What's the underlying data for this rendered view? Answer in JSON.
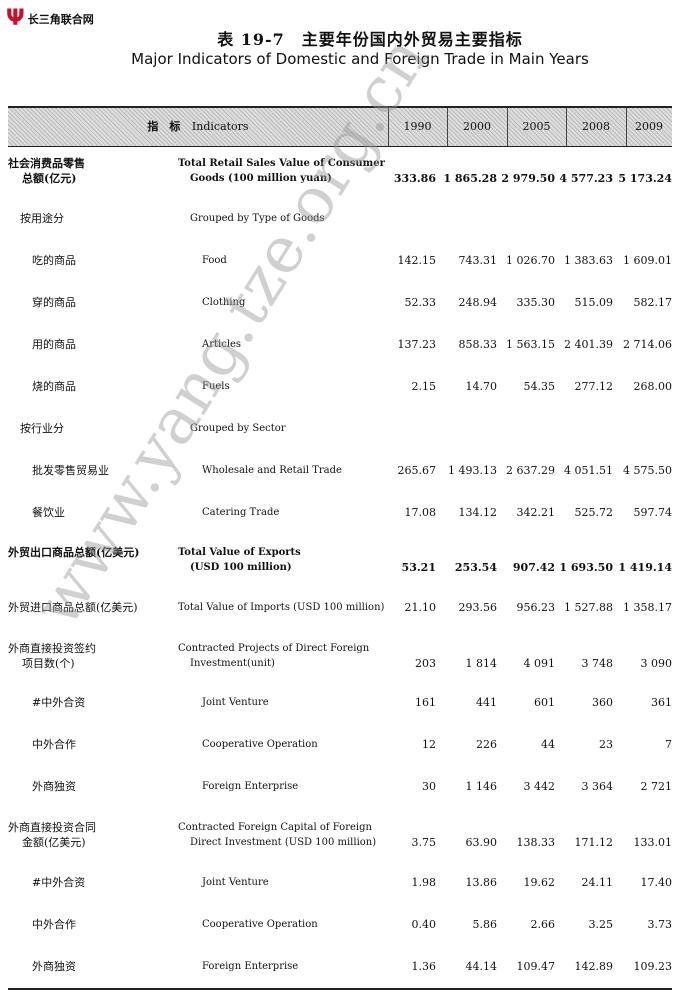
{
  "logo": {
    "mark": "Ψ",
    "text": "长三角联合网",
    "color": "#c8102e"
  },
  "title_cn": "表 19-7　主要年份国内外贸易主要指标",
  "title_en": "Major Indicators of Domestic and Foreign Trade in Main Years",
  "header": {
    "indicator_cn": "指　标",
    "indicator_en": "Indicators",
    "years": [
      "1990",
      "2000",
      "2005",
      "2008",
      "2009"
    ]
  },
  "rows": [
    {
      "cn": [
        "社会消费品零售",
        "总额(亿元)"
      ],
      "en": [
        "Total Retail Sales Value of Consumer",
        "Goods (100 million yuan)"
      ],
      "values": [
        "333.86",
        "1 865.28",
        "2 979.50",
        "4 577.23",
        "5 173.24"
      ],
      "bold": true,
      "indent": 0
    },
    {
      "cn": [
        "按用途分"
      ],
      "en": [
        "Grouped by Type of Goods"
      ],
      "values": [],
      "indent": 1
    },
    {
      "cn": [
        "吃的商品"
      ],
      "en": [
        "Food"
      ],
      "values": [
        "142.15",
        "743.31",
        "1 026.70",
        "1 383.63",
        "1 609.01"
      ],
      "indent": 2
    },
    {
      "cn": [
        "穿的商品"
      ],
      "en": [
        "Clothing"
      ],
      "values": [
        "52.33",
        "248.94",
        "335.30",
        "515.09",
        "582.17"
      ],
      "indent": 2
    },
    {
      "cn": [
        "用的商品"
      ],
      "en": [
        "Articles"
      ],
      "values": [
        "137.23",
        "858.33",
        "1 563.15",
        "2 401.39",
        "2 714.06"
      ],
      "indent": 2
    },
    {
      "cn": [
        "烧的商品"
      ],
      "en": [
        "Fuels"
      ],
      "values": [
        "2.15",
        "14.70",
        "54.35",
        "277.12",
        "268.00"
      ],
      "indent": 2
    },
    {
      "cn": [
        "按行业分"
      ],
      "en": [
        "Grouped by Sector"
      ],
      "values": [],
      "indent": 1
    },
    {
      "cn": [
        "批发零售贸易业"
      ],
      "en": [
        "Wholesale and Retail Trade"
      ],
      "values": [
        "265.67",
        "1 493.13",
        "2 637.29",
        "4 051.51",
        "4 575.50"
      ],
      "indent": 2
    },
    {
      "cn": [
        "餐饮业"
      ],
      "en": [
        "Catering Trade"
      ],
      "values": [
        "17.08",
        "134.12",
        "342.21",
        "525.72",
        "597.74"
      ],
      "indent": 2
    },
    {
      "cn": [
        "外贸出口商品总额(亿美元)"
      ],
      "en": [
        "Total Value of Exports",
        "(USD 100 million)"
      ],
      "values": [
        "53.21",
        "253.54",
        "907.42",
        "1 693.50",
        "1 419.14"
      ],
      "bold": true,
      "indent": 0
    },
    {
      "cn": [
        "外贸进口商品总额(亿美元)"
      ],
      "en": [
        "Total Value of Imports (USD 100 million)"
      ],
      "values": [
        "21.10",
        "293.56",
        "956.23",
        "1 527.88",
        "1 358.17"
      ],
      "indent": 0
    },
    {
      "cn": [
        "外商直接投资签约",
        "项目数(个)"
      ],
      "en": [
        "Contracted Projects of Direct Foreign",
        "Investment(unit)"
      ],
      "values": [
        "203",
        "1 814",
        "4 091",
        "3 748",
        "3 090"
      ],
      "indent": 0
    },
    {
      "cn": [
        "#中外合资"
      ],
      "en": [
        "Joint Venture"
      ],
      "values": [
        "161",
        "441",
        "601",
        "360",
        "361"
      ],
      "indent": 2
    },
    {
      "cn": [
        "中外合作"
      ],
      "en": [
        "Cooperative Operation"
      ],
      "values": [
        "12",
        "226",
        "44",
        "23",
        "7"
      ],
      "indent": 2
    },
    {
      "cn": [
        "外商独资"
      ],
      "en": [
        "Foreign Enterprise"
      ],
      "values": [
        "30",
        "1 146",
        "3 442",
        "3 364",
        "2 721"
      ],
      "indent": 2
    },
    {
      "cn": [
        "外商直接投资合同",
        "金额(亿美元)"
      ],
      "en": [
        "Contracted Foreign Capital of Foreign",
        "Direct Investment (USD 100 million)"
      ],
      "values": [
        "3.75",
        "63.90",
        "138.33",
        "171.12",
        "133.01"
      ],
      "indent": 0
    },
    {
      "cn": [
        "#中外合资"
      ],
      "en": [
        "Joint Venture"
      ],
      "values": [
        "1.98",
        "13.86",
        "19.62",
        "24.11",
        "17.40"
      ],
      "indent": 2
    },
    {
      "cn": [
        "中外合作"
      ],
      "en": [
        "Cooperative Operation"
      ],
      "values": [
        "0.40",
        "5.86",
        "2.66",
        "3.25",
        "3.73"
      ],
      "indent": 2
    },
    {
      "cn": [
        "外商独资"
      ],
      "en": [
        "Foreign Enterprise"
      ],
      "values": [
        "1.36",
        "44.14",
        "109.47",
        "142.89",
        "109.23"
      ],
      "indent": 2
    }
  ],
  "watermark": "www.yang.tze.org.cn"
}
